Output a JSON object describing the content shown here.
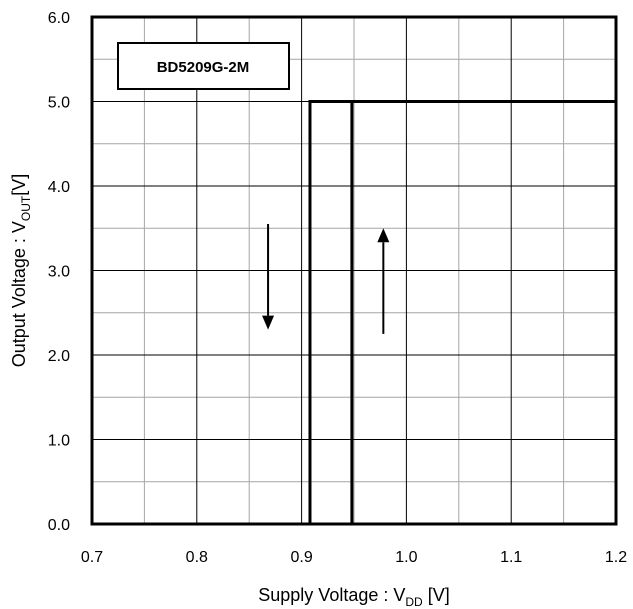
{
  "chart_data": {
    "type": "line",
    "title": "",
    "annotation": "BD5209G-2M",
    "xlabel": {
      "text": "Supply Voltage : V",
      "sub": "DD",
      "suffix": " [V]"
    },
    "ylabel": {
      "text": "Output Voltage : V",
      "sub": "OUT",
      "suffix": "[V]"
    },
    "xlim": [
      0.7,
      1.2
    ],
    "ylim": [
      0.0,
      6.0
    ],
    "x_major_ticks": [
      0.7,
      0.8,
      0.9,
      1.0,
      1.1,
      1.2
    ],
    "x_tick_labels": [
      "0.7",
      "0.8",
      "0.9",
      "1.0",
      "1.1",
      "1.2"
    ],
    "y_major_ticks": [
      0.0,
      1.0,
      2.0,
      3.0,
      4.0,
      5.0,
      6.0
    ],
    "y_tick_labels": [
      "0.0",
      "1.0",
      "2.0",
      "3.0",
      "4.0",
      "5.0",
      "6.0"
    ],
    "x_minor_grid": [
      0.75,
      0.85,
      0.95,
      1.05,
      1.15
    ],
    "y_minor_grid": [
      0.5,
      1.5,
      2.5,
      3.5,
      4.5,
      5.5
    ],
    "grid": true,
    "series": [
      {
        "direction": "rising",
        "x": [
          0.7,
          0.948,
          0.948,
          1.2
        ],
        "y": [
          0.0,
          0.0,
          5.0,
          5.0
        ]
      },
      {
        "direction": "falling",
        "x": [
          1.2,
          0.908,
          0.908,
          0.7
        ],
        "y": [
          5.0,
          5.0,
          0.0,
          0.0
        ]
      }
    ],
    "arrows": [
      {
        "direction": "down",
        "x": 0.868,
        "y_from": 3.55,
        "y_to": 2.3
      },
      {
        "direction": "up",
        "x": 0.978,
        "y_from": 2.25,
        "y_to": 3.5
      }
    ]
  }
}
